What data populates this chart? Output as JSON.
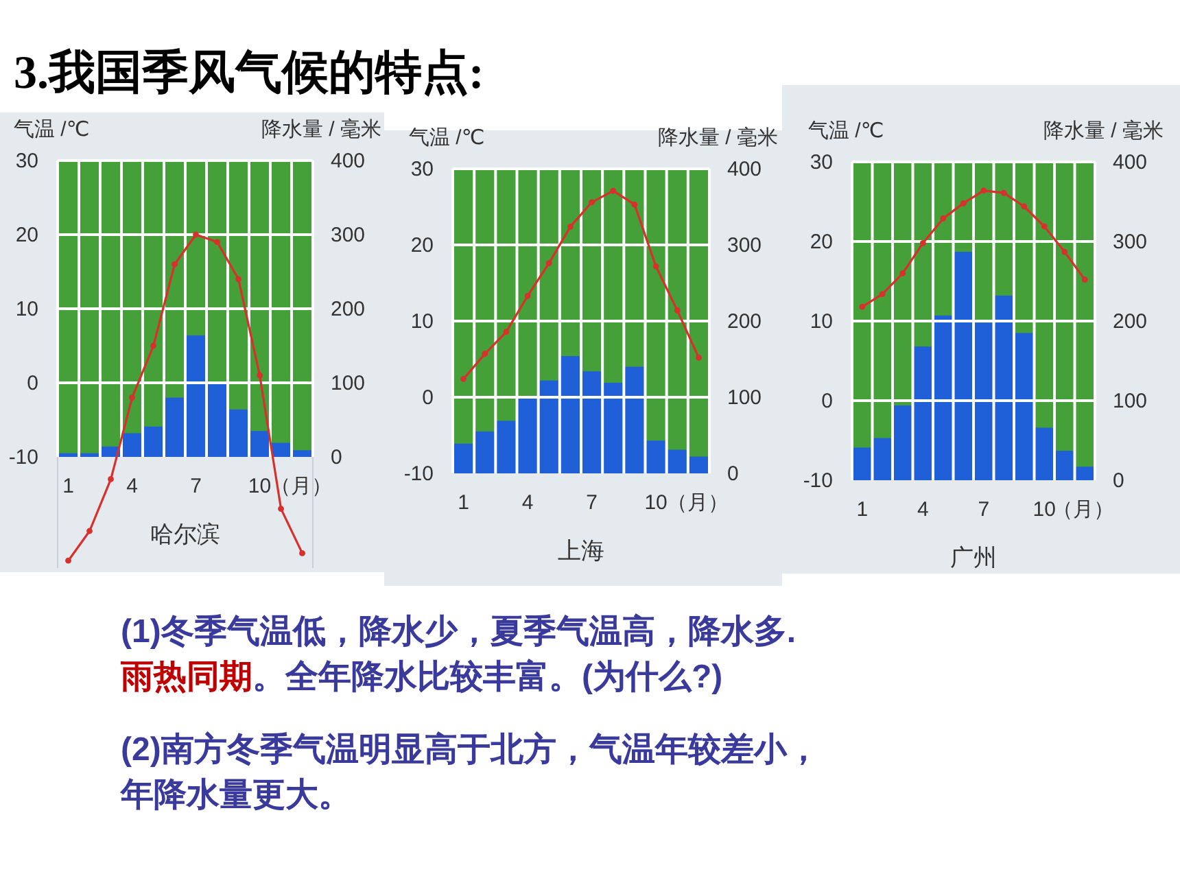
{
  "chart_data": [
    {
      "type": "other",
      "title": "3.我国季风气候的特点:",
      "annotations": [
        "(1)冬季气温低，降水少，夏季气温高，降水多.",
        "雨热同期",
        "。全年降水比较丰富。(为什么?)",
        "(2)南方冬季气温明显高于北方，气温年较差小，年降水量更大。"
      ]
    },
    {
      "type": "bar",
      "title": "哈尔滨",
      "xlabel": "（月）",
      "ylabel": "气温 /℃",
      "y2label": "降水量 / 毫米",
      "categories": [
        "1",
        null,
        null,
        "4",
        null,
        null,
        "7",
        null,
        null,
        "10",
        null,
        null
      ],
      "ylim": [
        -25,
        30
      ],
      "yticks": [
        -10,
        0,
        10,
        20,
        30
      ],
      "y2lim": [
        -150,
        400
      ],
      "y2ticks": [
        0,
        100,
        200,
        300,
        400
      ],
      "grid": true,
      "marker": "circle",
      "series": [
        {
          "type": "bar",
          "axis": "y2",
          "color": "#1f5fd8",
          "values": [
            5,
            5,
            14,
            32,
            41,
            80,
            164,
            99,
            64,
            35,
            19,
            9
          ]
        },
        {
          "type": "line",
          "color": "#d8302c",
          "values": [
            -24,
            -20,
            -13,
            -2,
            5,
            16,
            20,
            19,
            14,
            1,
            -17,
            -23
          ]
        }
      ]
    },
    {
      "type": "bar",
      "title": "上海",
      "xlabel": "（月）",
      "ylabel": "气温 /℃",
      "y2label": "降水量 / 毫米",
      "categories": [
        "1",
        null,
        null,
        "4",
        null,
        null,
        "7",
        null,
        null,
        "10",
        null,
        null
      ],
      "ylim": [
        -10,
        30
      ],
      "yticks": [
        -10,
        0,
        10,
        20,
        30
      ],
      "y2lim": [
        0,
        400
      ],
      "y2ticks": [
        0,
        100,
        200,
        300,
        400
      ],
      "grid": true,
      "marker": "circle",
      "series": [
        {
          "type": "bar",
          "axis": "y2",
          "color": "#1f5fd8",
          "values": [
            39,
            55,
            69,
            99,
            122,
            154,
            134,
            119,
            140,
            43,
            31,
            22
          ]
        },
        {
          "type": "line",
          "color": "#d8302c",
          "values": [
            2.4,
            5.7,
            8.6,
            13.3,
            17.6,
            22.4,
            25.6,
            27.1,
            25.3,
            17.2,
            11.4,
            5.2
          ]
        }
      ]
    },
    {
      "type": "bar",
      "title": "广州",
      "xlabel": "（月）",
      "ylabel": "气温 /℃",
      "y2label": "降水量 / 毫米",
      "categories": [
        "1",
        null,
        null,
        "4",
        null,
        null,
        "7",
        null,
        null,
        "10",
        null,
        null
      ],
      "ylim": [
        -10,
        30
      ],
      "yticks": [
        -10,
        0,
        10,
        20,
        30
      ],
      "y2lim": [
        0,
        400
      ],
      "y2ticks": [
        0,
        100,
        200,
        300,
        400
      ],
      "grid": true,
      "marker": "circle",
      "series": [
        {
          "type": "bar",
          "axis": "y2",
          "color": "#1f5fd8",
          "values": [
            41,
            53,
            94,
            168,
            207,
            287,
            198,
            232,
            185,
            66,
            37,
            17
          ]
        },
        {
          "type": "line",
          "color": "#d8302c",
          "values": [
            11.8,
            13.4,
            16,
            19.8,
            22.9,
            24.8,
            26.4,
            26.1,
            24.4,
            21.9,
            18.7,
            15.2
          ]
        }
      ]
    }
  ]
}
